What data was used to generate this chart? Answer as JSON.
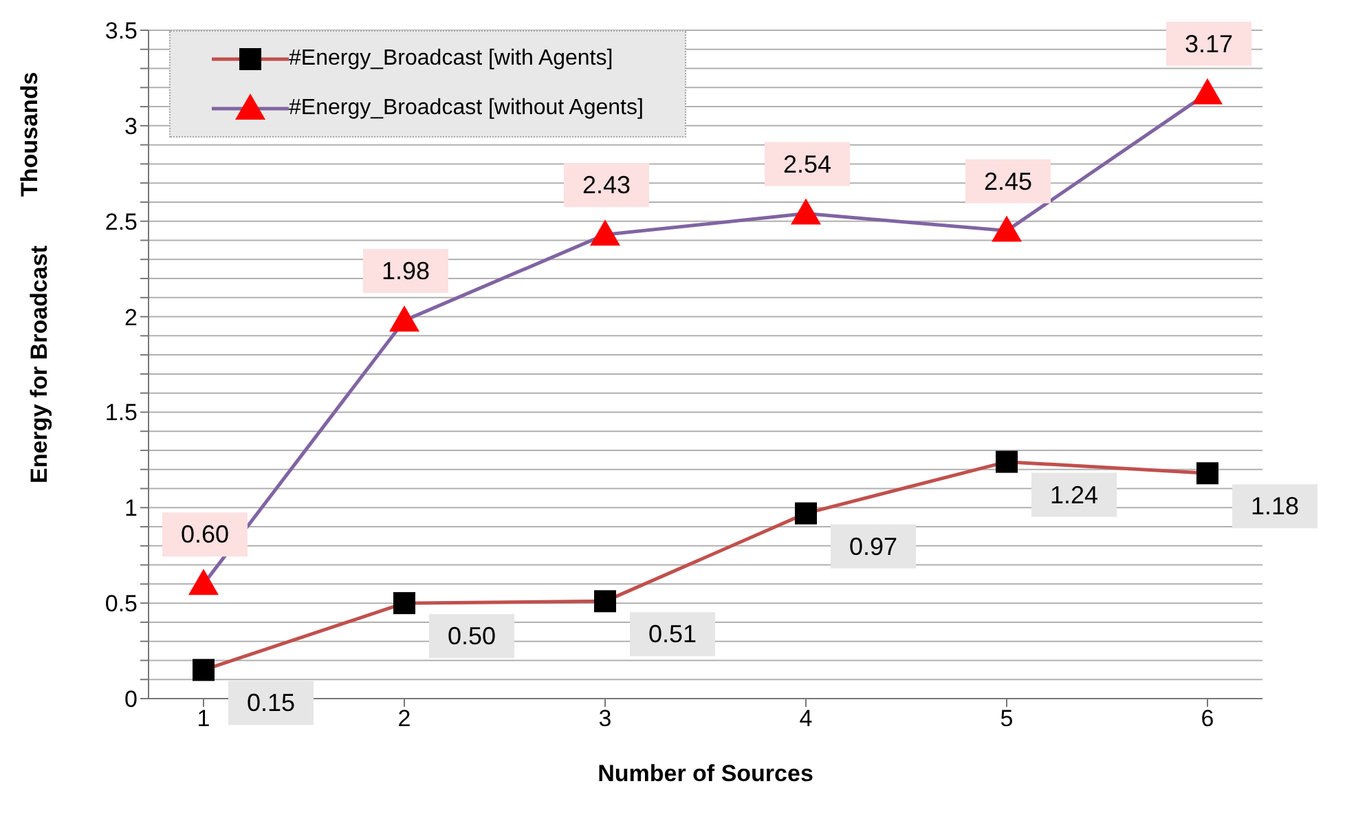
{
  "chart_data": {
    "type": "line",
    "xlabel": "Number of Sources",
    "ylabel": "Energy for Broadcast",
    "annotations": [
      "Thousands"
    ],
    "categories": [
      "1",
      "2",
      "3",
      "4",
      "5",
      "6"
    ],
    "series": [
      {
        "name": "#Energy_Broadcast [with Agents]",
        "color": "#c0504d",
        "colors": [
          "#000000",
          "#000000",
          "#000000",
          "#000000",
          "#000000",
          "#000000"
        ],
        "marker": "square",
        "values": [
          0.15,
          0.5,
          0.51,
          0.97,
          1.24,
          1.18
        ],
        "value_labels": [
          "0.15",
          "0.50",
          "0.51",
          "0.97",
          "1.24",
          "1.18"
        ]
      },
      {
        "name": "#Energy_Broadcast [without Agents]",
        "color": "#8064a2",
        "colors": [
          "#ff0000",
          "#ff0000",
          "#ff0000",
          "#ff0000",
          "#ff0000",
          "#ff0000"
        ],
        "marker": "triangle",
        "values": [
          0.6,
          1.98,
          2.43,
          2.54,
          2.45,
          3.17
        ],
        "value_labels": [
          "0.60",
          "1.98",
          "2.43",
          "2.54",
          "2.45",
          "3.17"
        ]
      }
    ],
    "ylim": [
      0,
      3.5
    ],
    "yticks": [
      0,
      {
        "value": 0.1,
        "label": null
      },
      {
        "value": 0.2,
        "label": null
      },
      {
        "value": 0.3,
        "label": null
      },
      {
        "value": 0.4,
        "label": null
      },
      0.5,
      {
        "value": 0.6,
        "label": null
      },
      {
        "value": 0.7,
        "label": null
      },
      {
        "value": 0.8,
        "label": null
      },
      {
        "value": 0.9,
        "label": null
      },
      1,
      {
        "value": 1.1,
        "label": null
      },
      {
        "value": 1.2,
        "label": null
      },
      {
        "value": 1.3,
        "label": null
      },
      {
        "value": 1.4,
        "label": null
      },
      1.5,
      {
        "value": 1.6,
        "label": null
      },
      {
        "value": 1.7,
        "label": null
      },
      {
        "value": 1.8,
        "label": null
      },
      {
        "value": 1.9,
        "label": null
      },
      2,
      {
        "value": 2.1,
        "label": null
      },
      {
        "value": 2.2,
        "label": null
      },
      {
        "value": 2.3,
        "label": null
      },
      {
        "value": 2.4,
        "label": null
      },
      2.5,
      {
        "value": 2.6,
        "label": null
      },
      {
        "value": 2.7,
        "label": null
      },
      {
        "value": 2.8,
        "label": null
      },
      {
        "value": 2.9,
        "label": null
      },
      3,
      {
        "value": 3.1,
        "label": null
      },
      {
        "value": 3.2,
        "label": null
      },
      {
        "value": 3.3,
        "label": null
      },
      {
        "value": 3.4,
        "label": null
      },
      3.5
    ],
    "grid": "y",
    "legend": "top left",
    "line_style": "solid"
  }
}
